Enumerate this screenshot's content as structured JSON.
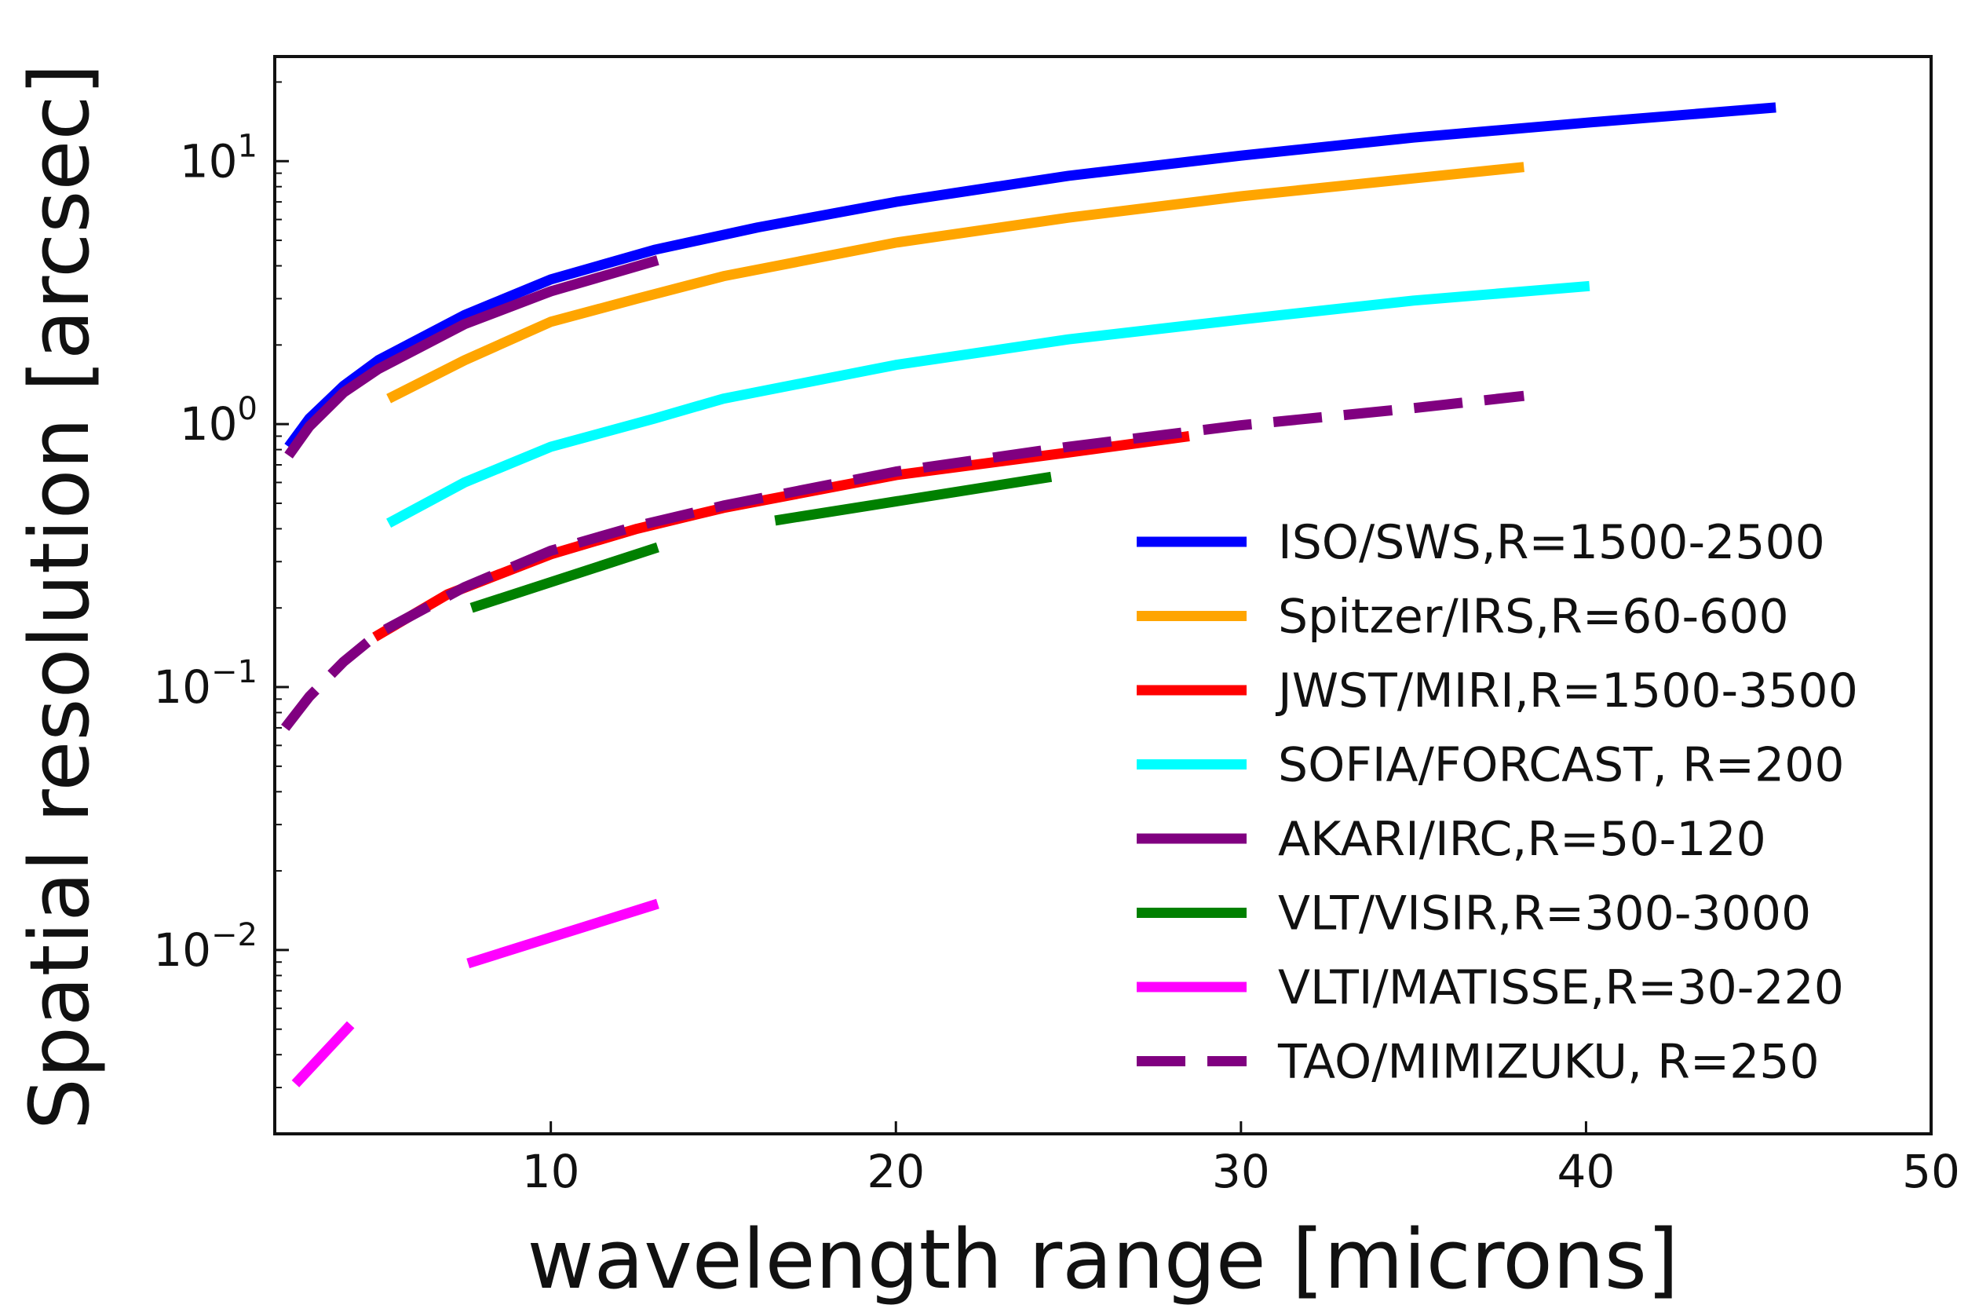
{
  "chart_data": {
    "type": "line",
    "title": "",
    "xlabel": "wavelength range [microns]",
    "ylabel": "Spatial resolution [arcsec]",
    "xlim": [
      2,
      50
    ],
    "ylim": [
      0.002,
      25
    ],
    "yscale": "log",
    "grid": false,
    "legend_position": "lower-right",
    "x_ticks": [
      {
        "value": 10,
        "label": "10"
      },
      {
        "value": 20,
        "label": "20"
      },
      {
        "value": 30,
        "label": "30"
      },
      {
        "value": 40,
        "label": "40"
      },
      {
        "value": 50,
        "label": "50"
      }
    ],
    "y_ticks": [
      {
        "value": 0.01,
        "base": "10",
        "exp": "−2"
      },
      {
        "value": 0.1,
        "base": "10",
        "exp": "−1"
      },
      {
        "value": 1,
        "base": "10",
        "exp": "0"
      },
      {
        "value": 10,
        "base": "10",
        "exp": "1"
      }
    ],
    "series": [
      {
        "name": "ISO/SWS,R=1500-2500",
        "color": "#0000ff",
        "dash": "solid",
        "segments": [
          {
            "x": [
              2.4,
              3,
              4,
              5,
              7.5,
              10,
              13,
              16,
              20,
              25,
              30,
              35,
              40,
              45.5
            ],
            "y": [
              0.82,
              1.05,
              1.4,
              1.75,
              2.6,
              3.55,
              4.6,
              5.6,
              7.0,
              8.8,
              10.5,
              12.3,
              14.0,
              16.0
            ]
          }
        ]
      },
      {
        "name": "Spitzer/IRS,R=60-600",
        "color": "#ffa500",
        "dash": "solid",
        "segments": [
          {
            "x": [
              5.3,
              7.5,
              10,
              12.5,
              15,
              20,
              25,
              30,
              35,
              38.2
            ],
            "y": [
              1.25,
              1.75,
              2.45,
              3.0,
              3.65,
              4.9,
              6.1,
              7.35,
              8.6,
              9.5
            ]
          }
        ]
      },
      {
        "name": "JWST/MIRI,R=1500-3500",
        "color": "#ff0000",
        "dash": "solid",
        "segments": [
          {
            "x": [
              4.9,
              7,
              10,
              12.5,
              15,
              20,
              25,
              28.5
            ],
            "y": [
              0.155,
              0.225,
              0.32,
              0.4,
              0.48,
              0.64,
              0.78,
              0.9
            ]
          }
        ]
      },
      {
        "name": "SOFIA/FORCAST, R=200",
        "color": "#00ffff",
        "dash": "solid",
        "segments": [
          {
            "x": [
              5.3,
              7.5,
              10,
              13,
              15,
              20,
              25,
              30,
              35,
              40.1
            ],
            "y": [
              0.42,
              0.6,
              0.82,
              1.05,
              1.25,
              1.68,
              2.1,
              2.5,
              2.95,
              3.35
            ]
          }
        ]
      },
      {
        "name": "AKARI/IRC,R=50-120",
        "color": "#800080",
        "dash": "solid",
        "segments": [
          {
            "x": [
              2.4,
              3,
              4,
              5,
              7.5,
              10,
              13.1
            ],
            "y": [
              0.76,
              0.98,
              1.32,
              1.62,
              2.4,
              3.2,
              4.2
            ]
          }
        ]
      },
      {
        "name": "VLT/VISIR,R=300-3000",
        "color": "#008000",
        "dash": "solid",
        "segments": [
          {
            "x": [
              7.7,
              13.1
            ],
            "y": [
              0.2,
              0.34
            ]
          },
          {
            "x": [
              16.5,
              24.5
            ],
            "y": [
              0.43,
              0.63
            ]
          }
        ]
      },
      {
        "name": "VLTI/MATISSE,R=30-220",
        "color": "#ff00ff",
        "dash": "solid",
        "segments": [
          {
            "x": [
              2.6,
              4.2
            ],
            "y": [
              0.0031,
              0.0052
            ]
          },
          {
            "x": [
              7.6,
              13.1
            ],
            "y": [
              0.0089,
              0.015
            ]
          }
        ]
      },
      {
        "name": "TAO/MIMIZUKU, R=250",
        "color": "#800080",
        "dash": "dashed",
        "segments": [
          {
            "x": [
              2.3,
              3,
              4,
              5,
              7.5,
              10,
              12.5,
              15,
              20,
              25,
              30,
              35,
              38.2
            ],
            "y": [
              0.07,
              0.092,
              0.125,
              0.16,
              0.24,
              0.33,
              0.41,
              0.49,
              0.66,
              0.82,
              0.99,
              1.15,
              1.28
            ]
          }
        ]
      }
    ]
  }
}
